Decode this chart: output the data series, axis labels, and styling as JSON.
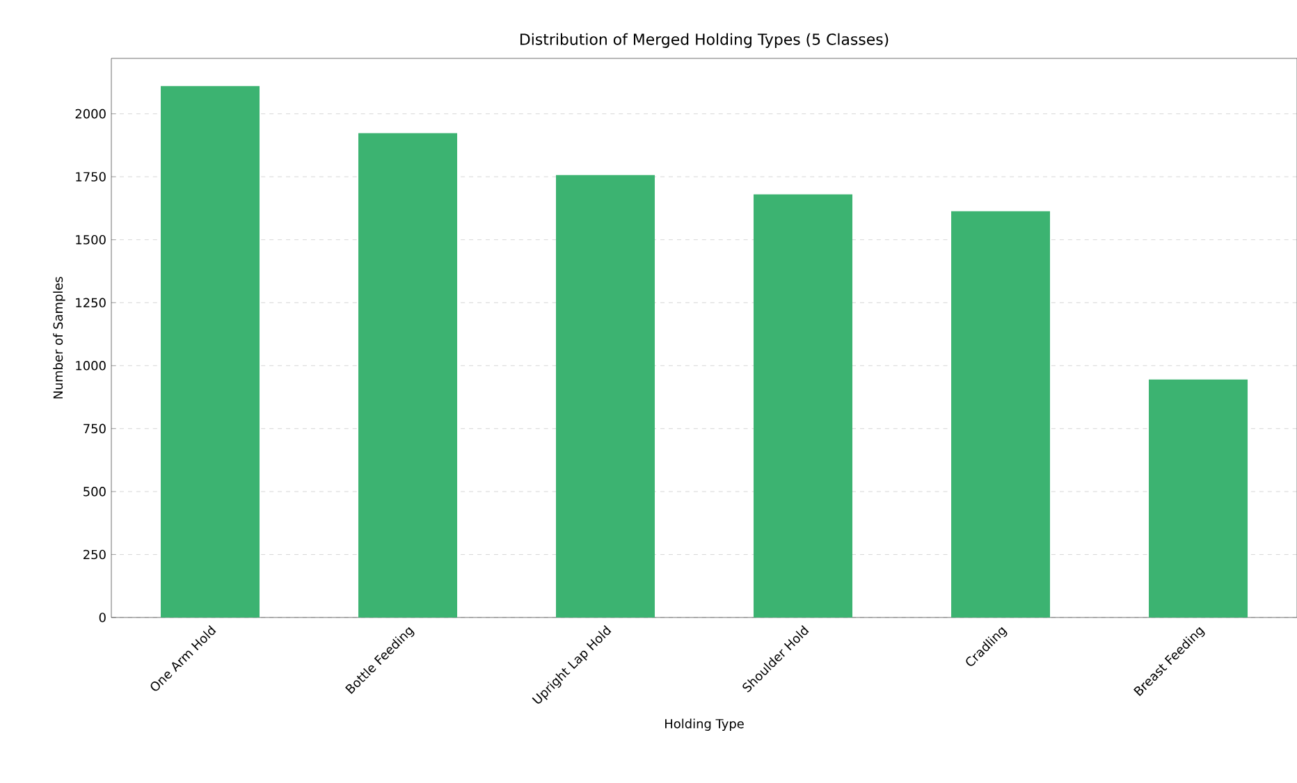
{
  "chart_data": {
    "type": "bar",
    "title": "Distribution of Merged Holding Types (5 Classes)",
    "xlabel": "Holding Type",
    "ylabel": "Number of Samples",
    "categories": [
      "One Arm Hold",
      "Bottle Feeding",
      "Upright Lap Hold",
      "Shoulder Hold",
      "Cradling",
      "Breast Feeding"
    ],
    "values": [
      2110,
      1923,
      1757,
      1680,
      1613,
      945
    ],
    "color": "#3cb371",
    "ylim": [
      0,
      2220
    ],
    "yticks": [
      0,
      250,
      500,
      750,
      1000,
      1250,
      1500,
      1750,
      2000
    ],
    "grid": "y"
  }
}
